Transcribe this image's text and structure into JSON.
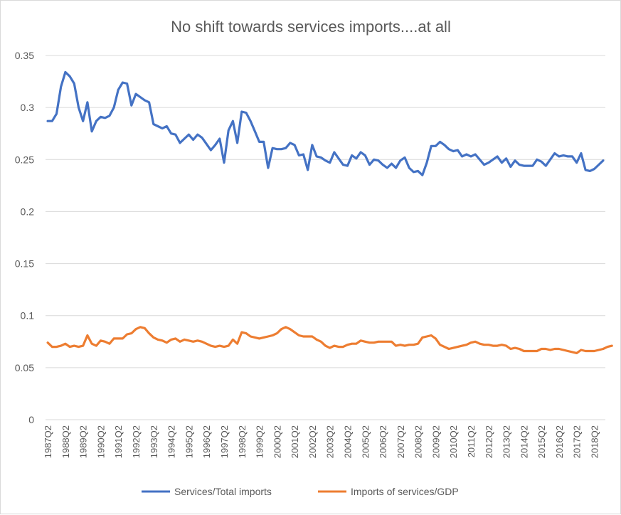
{
  "chart_data": {
    "type": "line",
    "title": "No shift towards services imports....at all",
    "xlabel": "",
    "ylabel": "",
    "ylim": [
      0,
      0.35
    ],
    "y_ticks": [
      "0",
      "0.05",
      "0.1",
      "0.15",
      "0.2",
      "0.25",
      "0.3",
      "0.35"
    ],
    "grid": true,
    "legend_position": "bottom",
    "x_tick_labels": [
      "1987Q2",
      "1988Q2",
      "1989Q2",
      "1990Q2",
      "1991Q2",
      "1992Q2",
      "1993Q2",
      "1994Q2",
      "1995Q2",
      "1996Q2",
      "1997Q2",
      "1998Q2",
      "1999Q2",
      "2000Q2",
      "2001Q2",
      "2002Q2",
      "2003Q2",
      "2004Q2",
      "2005Q2",
      "2006Q2",
      "2007Q2",
      "2008Q2",
      "2009Q2",
      "2010Q2",
      "2011Q2",
      "2012Q2",
      "2013Q2",
      "2014Q2",
      "2015Q2",
      "2016Q2",
      "2017Q2",
      "2018Q2"
    ],
    "series": [
      {
        "name": "Services/Total imports",
        "color": "#4472C4",
        "values": [
          0.287,
          0.287,
          0.294,
          0.32,
          0.334,
          0.33,
          0.323,
          0.3,
          0.287,
          0.305,
          0.277,
          0.287,
          0.291,
          0.29,
          0.292,
          0.3,
          0.317,
          0.324,
          0.323,
          0.302,
          0.313,
          0.31,
          0.307,
          0.305,
          0.284,
          0.282,
          0.28,
          0.282,
          0.275,
          0.274,
          0.266,
          0.27,
          0.274,
          0.269,
          0.274,
          0.271,
          0.265,
          0.259,
          0.264,
          0.27,
          0.247,
          0.278,
          0.287,
          0.266,
          0.296,
          0.295,
          0.287,
          0.277,
          0.267,
          0.267,
          0.242,
          0.261,
          0.26,
          0.26,
          0.261,
          0.266,
          0.264,
          0.254,
          0.255,
          0.24,
          0.264,
          0.253,
          0.252,
          0.249,
          0.247,
          0.257,
          0.251,
          0.245,
          0.244,
          0.254,
          0.251,
          0.257,
          0.254,
          0.245,
          0.25,
          0.249,
          0.245,
          0.242,
          0.246,
          0.242,
          0.249,
          0.252,
          0.242,
          0.238,
          0.239,
          0.235,
          0.247,
          0.263,
          0.263,
          0.267,
          0.264,
          0.26,
          0.258,
          0.259,
          0.253,
          0.255,
          0.253,
          0.255,
          0.25,
          0.245,
          0.247,
          0.25,
          0.253,
          0.247,
          0.251,
          0.243,
          0.249,
          0.245,
          0.244,
          0.244,
          0.244,
          0.25,
          0.248,
          0.244,
          0.25,
          0.256,
          0.253,
          0.254,
          0.253,
          0.253,
          0.247,
          0.256,
          0.24,
          0.239,
          0.241,
          0.245,
          0.249
        ]
      },
      {
        "name": "Imports of services/GDP",
        "color": "#ED7D31",
        "values": [
          0.074,
          0.07,
          0.07,
          0.071,
          0.073,
          0.07,
          0.071,
          0.07,
          0.071,
          0.081,
          0.073,
          0.071,
          0.076,
          0.075,
          0.073,
          0.078,
          0.078,
          0.078,
          0.082,
          0.083,
          0.087,
          0.089,
          0.088,
          0.083,
          0.079,
          0.077,
          0.076,
          0.074,
          0.077,
          0.078,
          0.075,
          0.077,
          0.076,
          0.075,
          0.076,
          0.075,
          0.073,
          0.071,
          0.07,
          0.071,
          0.07,
          0.071,
          0.077,
          0.073,
          0.084,
          0.083,
          0.08,
          0.079,
          0.078,
          0.079,
          0.08,
          0.081,
          0.083,
          0.087,
          0.089,
          0.087,
          0.084,
          0.081,
          0.08,
          0.08,
          0.08,
          0.077,
          0.075,
          0.071,
          0.069,
          0.071,
          0.07,
          0.07,
          0.072,
          0.073,
          0.073,
          0.076,
          0.075,
          0.074,
          0.074,
          0.075,
          0.075,
          0.075,
          0.075,
          0.071,
          0.072,
          0.071,
          0.072,
          0.072,
          0.073,
          0.079,
          0.08,
          0.081,
          0.078,
          0.072,
          0.07,
          0.068,
          0.069,
          0.07,
          0.071,
          0.072,
          0.074,
          0.075,
          0.073,
          0.072,
          0.072,
          0.071,
          0.071,
          0.072,
          0.071,
          0.068,
          0.069,
          0.068,
          0.066,
          0.066,
          0.066,
          0.066,
          0.068,
          0.068,
          0.067,
          0.068,
          0.068,
          0.067,
          0.066,
          0.065,
          0.064,
          0.067,
          0.066,
          0.066,
          0.066,
          0.067,
          0.068,
          0.07,
          0.071
        ]
      }
    ]
  }
}
